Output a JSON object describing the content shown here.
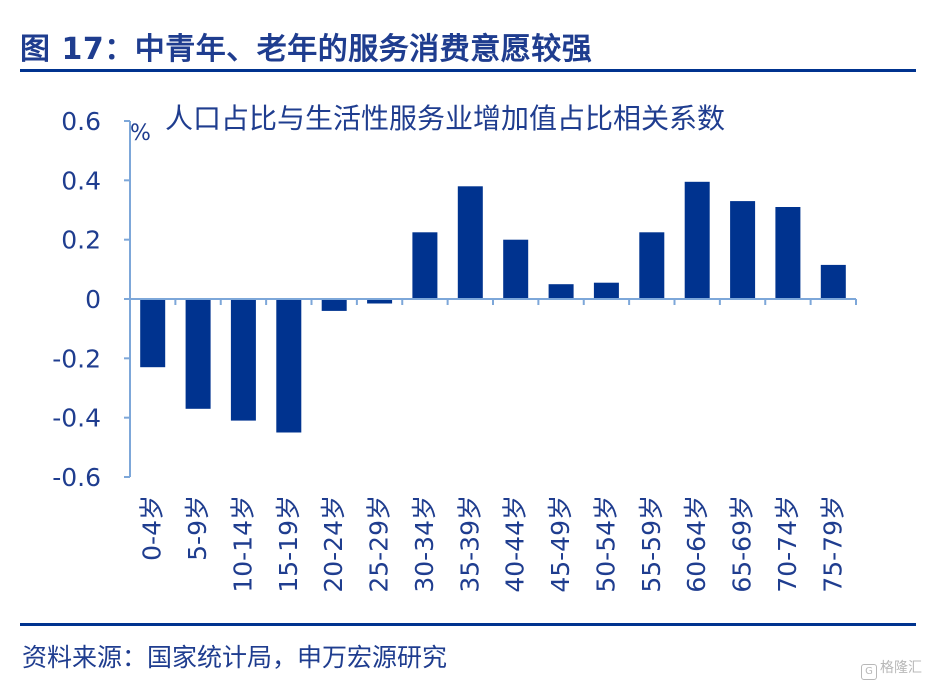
{
  "header": {
    "title": "图 17：中青年、老年的服务消费意愿较强"
  },
  "source": "资料来源：国家统计局，申万宏源研究",
  "watermark": "格隆汇",
  "chart_data": {
    "type": "bar",
    "title": "人口占比与生活性服务业增加值占比相关系数",
    "unit": "%",
    "xlabel": "",
    "ylabel": "",
    "ylim": [
      -0.6,
      0.6
    ],
    "yticks": [
      "0.6",
      "0.4",
      "0.2",
      "0",
      "-0.2",
      "-0.4",
      "-0.6"
    ],
    "categories": [
      "0-4岁",
      "5-9岁",
      "10-14岁",
      "15-19岁",
      "20-24岁",
      "25-29岁",
      "30-34岁",
      "35-39岁",
      "40-44岁",
      "45-49岁",
      "50-54岁",
      "55-59岁",
      "60-64岁",
      "65-69岁",
      "70-74岁",
      "75-79岁"
    ],
    "values": [
      -0.23,
      -0.37,
      -0.41,
      -0.45,
      -0.04,
      -0.015,
      0.225,
      0.38,
      0.2,
      0.05,
      0.055,
      0.225,
      0.395,
      0.33,
      0.31,
      0.115
    ],
    "bar_color": "#00338f",
    "axis_color": "#7da7d9",
    "legend": "none",
    "grid": false
  }
}
